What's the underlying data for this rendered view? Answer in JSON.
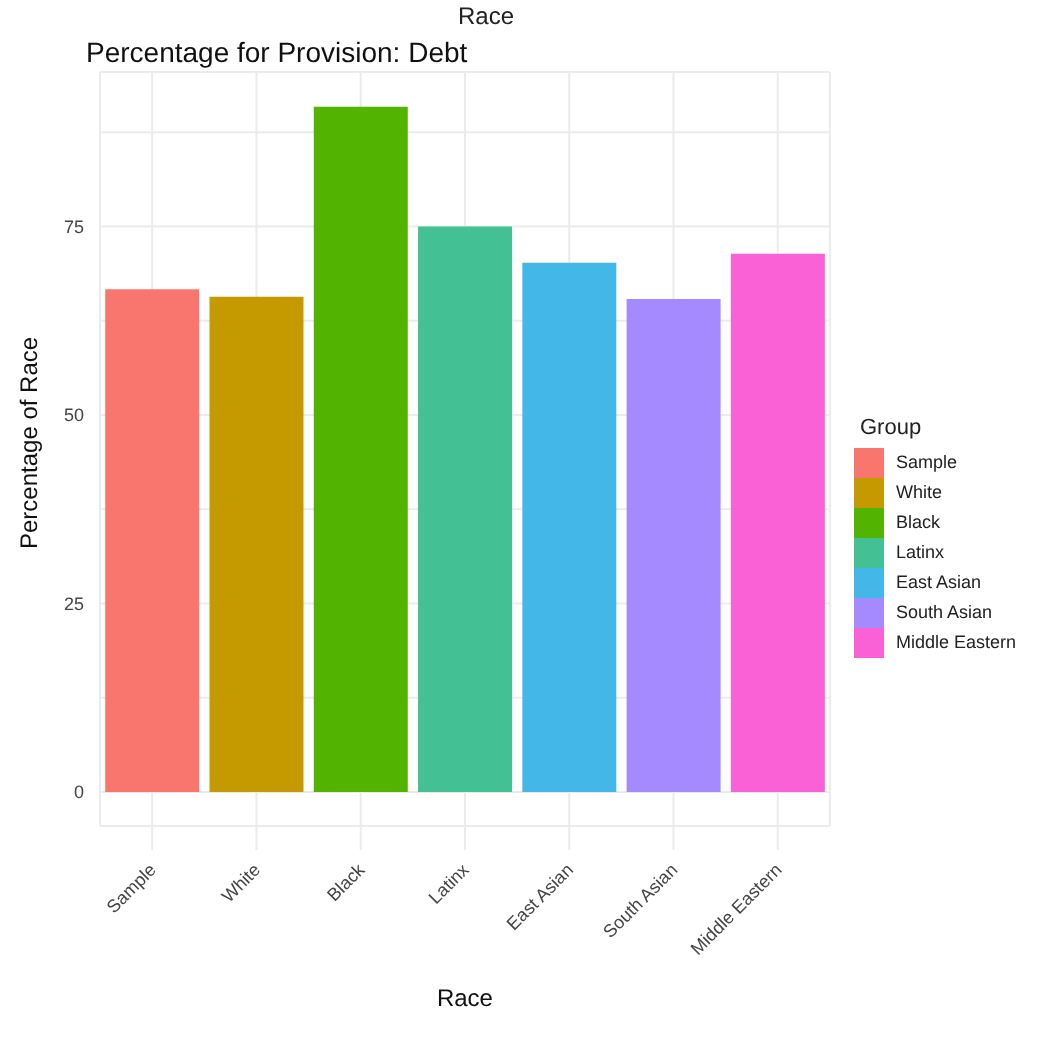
{
  "chart_data": {
    "type": "bar",
    "title": "Percentage for Provision: Debt",
    "xlabel": "Race",
    "ylabel": "Percentage of Race",
    "legend_title": "Group",
    "annotations": [
      "Race"
    ],
    "categories": [
      "Sample",
      "White",
      "Black",
      "Latinx",
      "East Asian",
      "South Asian",
      "Middle Eastern"
    ],
    "stacked": true,
    "series": [
      {
        "name": "Sample",
        "color": "#f8766d",
        "values": [
          66.7,
          null,
          null,
          null,
          null,
          null,
          null
        ]
      },
      {
        "name": "White",
        "color": "#c49a00",
        "values": [
          null,
          65.7,
          null,
          null,
          null,
          null,
          null
        ]
      },
      {
        "name": "Black",
        "color": "#53b400",
        "values": [
          null,
          null,
          90.9,
          null,
          null,
          null,
          null
        ]
      },
      {
        "name": "Latinx",
        "color": "#43c195",
        "values": [
          null,
          null,
          null,
          75.0,
          null,
          null,
          null
        ]
      },
      {
        "name": "East Asian",
        "color": "#44b7e9",
        "values": [
          null,
          null,
          null,
          null,
          70.2,
          null,
          null
        ]
      },
      {
        "name": "South Asian",
        "color": "#a58aff",
        "values": [
          null,
          null,
          null,
          null,
          null,
          65.4,
          null
        ]
      },
      {
        "name": "Middle Eastern",
        "color": "#fb61d7",
        "values": [
          null,
          null,
          null,
          null,
          null,
          null,
          71.4
        ]
      }
    ],
    "ylim": [
      -4.5,
      95.5
    ],
    "yticks": [
      0,
      {
        "value": 12.5,
        "label": null
      },
      25,
      {
        "value": 37.5,
        "label": null
      },
      50,
      {
        "value": 62.5,
        "label": null
      },
      75,
      {
        "value": 87.5,
        "label": null
      }
    ],
    "grid": true,
    "legend": "right"
  }
}
